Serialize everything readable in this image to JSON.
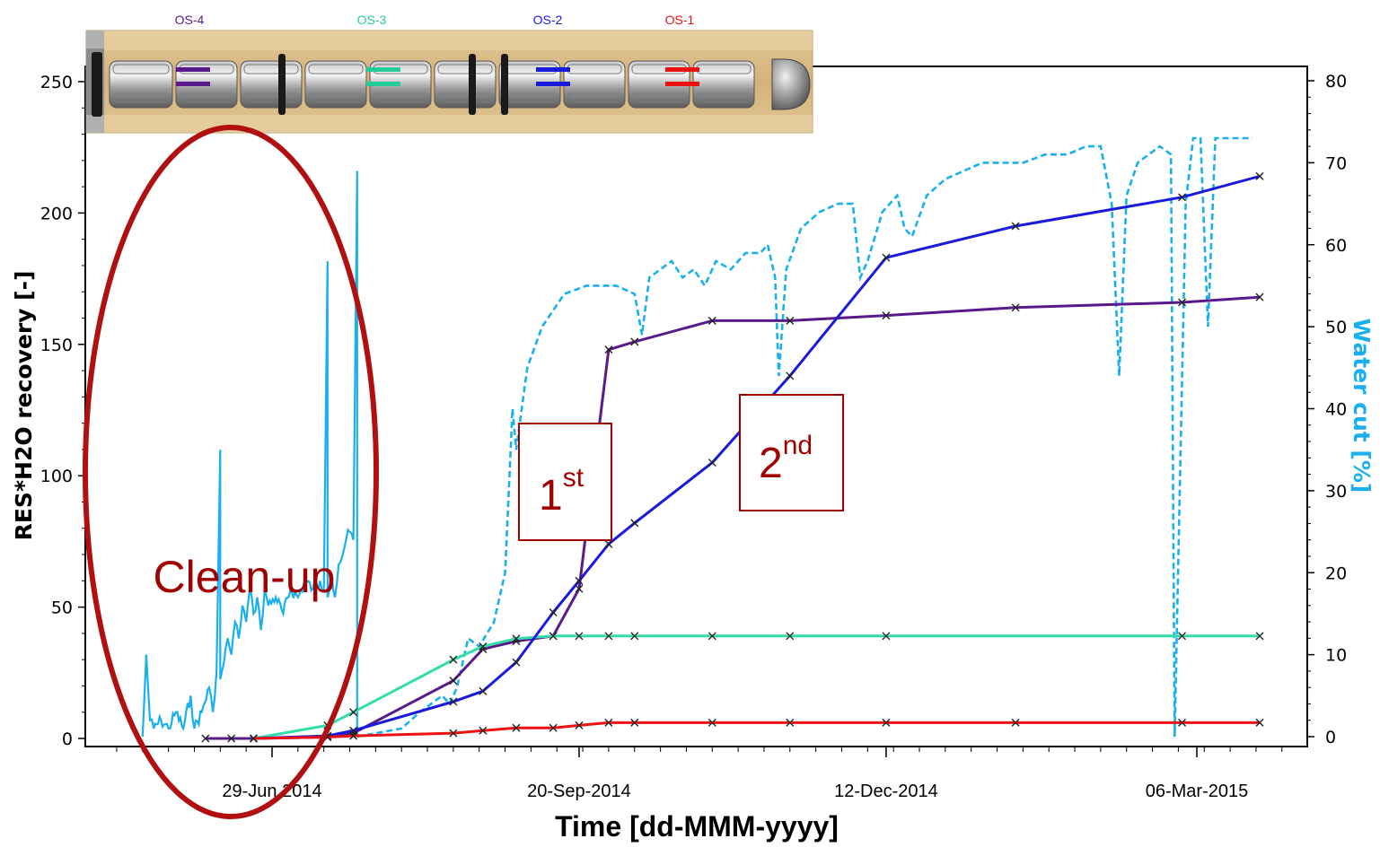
{
  "chart_data": {
    "type": "line",
    "title": "",
    "xlabel": "Time [dd-MMM-yyyy]",
    "ylabel": "RES*H2O recovery [-]",
    "y2label": "Water cut [%]",
    "xlim": [
      "2014-05-10",
      "2015-03-31"
    ],
    "ylim": [
      0,
      250
    ],
    "y2lim": [
      0,
      80
    ],
    "x_tick_labels": [
      {
        "date": "2014-06-29",
        "label": "29-Jun 2014"
      },
      {
        "date": "2014-09-20",
        "label": "20-Sep-2014"
      },
      {
        "date": "2014-12-12",
        "label": "12-Dec-2014"
      },
      {
        "date": "2015-03-06",
        "label": "06-Mar-2015"
      }
    ],
    "y_ticks": [
      0,
      50,
      100,
      150,
      200,
      250
    ],
    "y2_ticks": [
      0,
      10,
      20,
      30,
      40,
      50,
      60,
      70,
      80
    ],
    "colors": {
      "os1": "#ee1111",
      "os2": "#1a1add",
      "os3": "#33ddaa",
      "os4": "#5a1a8c",
      "water": "#1ab0ee",
      "annotation": "#a00000"
    },
    "series": [
      {
        "name": "OS-4",
        "color": "#5a1a8c",
        "points": [
          [
            "2014-06-11",
            0
          ],
          [
            "2014-06-18",
            0
          ],
          [
            "2014-06-24",
            0
          ],
          [
            "2014-07-14",
            0.5
          ],
          [
            "2014-07-21",
            2
          ],
          [
            "2014-08-17",
            22
          ],
          [
            "2014-08-25",
            34
          ],
          [
            "2014-09-03",
            37
          ],
          [
            "2014-09-13",
            39
          ],
          [
            "2014-09-20",
            57
          ],
          [
            "2014-09-28",
            148
          ],
          [
            "2014-10-05",
            151
          ],
          [
            "2014-10-26",
            159
          ],
          [
            "2014-11-16",
            159
          ],
          [
            "2014-12-12",
            161
          ],
          [
            "2015-01-16",
            164
          ],
          [
            "2015-03-02",
            166
          ],
          [
            "2015-03-23",
            168
          ]
        ]
      },
      {
        "name": "OS-3",
        "color": "#33ddaa",
        "points": [
          [
            "2014-06-24",
            0
          ],
          [
            "2014-07-14",
            5
          ],
          [
            "2014-07-21",
            10
          ],
          [
            "2014-08-17",
            30
          ],
          [
            "2014-08-25",
            35
          ],
          [
            "2014-09-03",
            38
          ],
          [
            "2014-09-13",
            39
          ],
          [
            "2014-09-20",
            39
          ],
          [
            "2014-09-28",
            39
          ],
          [
            "2014-10-05",
            39
          ],
          [
            "2014-10-26",
            39
          ],
          [
            "2014-11-16",
            39
          ],
          [
            "2014-12-12",
            39
          ],
          [
            "2015-03-02",
            39
          ],
          [
            "2015-03-23",
            39
          ]
        ]
      },
      {
        "name": "OS-2",
        "color": "#1a1add",
        "points": [
          [
            "2014-06-24",
            0
          ],
          [
            "2014-07-14",
            1
          ],
          [
            "2014-07-21",
            3
          ],
          [
            "2014-08-17",
            14
          ],
          [
            "2014-08-25",
            18
          ],
          [
            "2014-09-03",
            29
          ],
          [
            "2014-09-13",
            48
          ],
          [
            "2014-09-20",
            60
          ],
          [
            "2014-09-28",
            74
          ],
          [
            "2014-10-05",
            82
          ],
          [
            "2014-10-26",
            105
          ],
          [
            "2014-11-16",
            138
          ],
          [
            "2014-12-12",
            183
          ],
          [
            "2015-01-16",
            195
          ],
          [
            "2015-03-02",
            206
          ],
          [
            "2015-03-23",
            214
          ]
        ]
      },
      {
        "name": "OS-1",
        "color": "#ee1111",
        "points": [
          [
            "2014-06-24",
            0
          ],
          [
            "2014-07-14",
            0.5
          ],
          [
            "2014-07-21",
            1
          ],
          [
            "2014-08-17",
            2
          ],
          [
            "2014-08-25",
            3
          ],
          [
            "2014-09-03",
            4
          ],
          [
            "2014-09-13",
            4
          ],
          [
            "2014-09-20",
            5
          ],
          [
            "2014-09-28",
            6
          ],
          [
            "2014-10-05",
            6
          ],
          [
            "2014-10-26",
            6
          ],
          [
            "2014-11-16",
            6
          ],
          [
            "2014-12-12",
            6
          ],
          [
            "2015-01-16",
            6
          ],
          [
            "2015-03-02",
            6
          ],
          [
            "2015-03-23",
            6
          ]
        ]
      }
    ],
    "water_cut": {
      "color": "#1ab0ee",
      "cleanup_solid": [
        [
          "2014-05-25",
          0
        ],
        [
          "2014-05-26",
          10
        ],
        [
          "2014-05-27",
          2
        ],
        [
          "2014-05-28",
          1
        ],
        [
          "2014-05-30",
          2
        ],
        [
          "2014-06-01",
          1
        ],
        [
          "2014-06-03",
          3
        ],
        [
          "2014-06-05",
          1
        ],
        [
          "2014-06-07",
          5
        ],
        [
          "2014-06-08",
          1
        ],
        [
          "2014-06-10",
          3
        ],
        [
          "2014-06-12",
          6
        ],
        [
          "2014-06-13",
          3
        ],
        [
          "2014-06-14",
          8
        ],
        [
          "2014-06-15",
          35
        ],
        [
          "2014-06-15",
          7
        ],
        [
          "2014-06-16",
          9
        ],
        [
          "2014-06-17",
          12
        ],
        [
          "2014-06-18",
          10
        ],
        [
          "2014-06-19",
          14
        ],
        [
          "2014-06-20",
          12
        ],
        [
          "2014-06-21",
          16
        ],
        [
          "2014-06-22",
          14
        ],
        [
          "2014-06-23",
          18
        ],
        [
          "2014-06-24",
          15
        ],
        [
          "2014-06-25",
          17
        ],
        [
          "2014-06-26",
          13
        ],
        [
          "2014-06-27",
          18
        ],
        [
          "2014-06-28",
          16
        ],
        [
          "2014-06-30",
          17
        ],
        [
          "2014-07-02",
          15
        ],
        [
          "2014-07-04",
          18
        ],
        [
          "2014-07-06",
          17
        ],
        [
          "2014-07-08",
          19
        ],
        [
          "2014-07-10",
          18
        ],
        [
          "2014-07-12",
          19
        ],
        [
          "2014-07-13",
          18
        ],
        [
          "2014-07-14",
          58
        ],
        [
          "2014-07-14",
          17
        ],
        [
          "2014-07-15",
          20
        ],
        [
          "2014-07-16",
          17
        ],
        [
          "2014-07-17",
          21
        ],
        [
          "2014-07-18",
          22
        ],
        [
          "2014-07-19",
          24
        ],
        [
          "2014-07-20",
          25
        ],
        [
          "2014-07-21",
          24
        ],
        [
          "2014-07-22",
          69
        ],
        [
          "2014-07-22",
          0
        ]
      ],
      "dashed": [
        [
          "2014-07-22",
          0
        ],
        [
          "2014-08-03",
          1
        ],
        [
          "2014-08-08",
          3
        ],
        [
          "2014-08-14",
          5
        ],
        [
          "2014-08-16",
          4
        ],
        [
          "2014-08-18",
          6
        ],
        [
          "2014-08-21",
          12
        ],
        [
          "2014-08-24",
          11
        ],
        [
          "2014-08-28",
          14
        ],
        [
          "2014-08-31",
          20
        ],
        [
          "2014-09-02",
          40
        ],
        [
          "2014-09-03",
          35
        ],
        [
          "2014-09-06",
          45
        ],
        [
          "2014-09-10",
          50
        ],
        [
          "2014-09-16",
          54
        ],
        [
          "2014-09-22",
          55
        ],
        [
          "2014-09-30",
          55
        ],
        [
          "2014-10-05",
          54
        ],
        [
          "2014-10-07",
          49
        ],
        [
          "2014-10-09",
          56
        ],
        [
          "2014-10-12",
          57
        ],
        [
          "2014-10-15",
          58
        ],
        [
          "2014-10-18",
          56
        ],
        [
          "2014-10-21",
          57
        ],
        [
          "2014-10-24",
          55
        ],
        [
          "2014-10-27",
          58
        ],
        [
          "2014-10-31",
          57
        ],
        [
          "2014-11-04",
          59
        ],
        [
          "2014-11-08",
          59
        ],
        [
          "2014-11-10",
          60
        ],
        [
          "2014-11-12",
          56
        ],
        [
          "2014-11-13",
          44
        ],
        [
          "2014-11-15",
          57
        ],
        [
          "2014-11-19",
          62
        ],
        [
          "2014-11-24",
          64
        ],
        [
          "2014-11-29",
          65
        ],
        [
          "2014-12-03",
          65
        ],
        [
          "2014-12-05",
          56
        ],
        [
          "2014-12-07",
          58
        ],
        [
          "2014-12-11",
          64
        ],
        [
          "2014-12-15",
          66
        ],
        [
          "2014-12-17",
          62
        ],
        [
          "2014-12-19",
          61
        ],
        [
          "2014-12-23",
          66
        ],
        [
          "2014-12-28",
          68
        ],
        [
          "2015-01-02",
          69
        ],
        [
          "2015-01-07",
          70
        ],
        [
          "2015-01-12",
          70
        ],
        [
          "2015-01-18",
          70
        ],
        [
          "2015-01-24",
          71
        ],
        [
          "2015-01-30",
          71
        ],
        [
          "2015-02-04",
          72
        ],
        [
          "2015-02-08",
          72
        ],
        [
          "2015-02-11",
          65
        ],
        [
          "2015-02-13",
          44
        ],
        [
          "2015-02-15",
          66
        ],
        [
          "2015-02-18",
          70
        ],
        [
          "2015-02-21",
          71
        ],
        [
          "2015-02-24",
          72
        ],
        [
          "2015-02-27",
          71
        ],
        [
          "2015-02-28",
          0
        ],
        [
          "2015-03-03",
          65
        ],
        [
          "2015-03-05",
          73
        ],
        [
          "2015-03-07",
          73
        ],
        [
          "2015-03-09",
          50
        ],
        [
          "2015-03-11",
          73
        ],
        [
          "2015-03-14",
          73
        ],
        [
          "2015-03-21",
          73
        ]
      ]
    },
    "annotations": [
      {
        "text": "Clean-up",
        "x": "2014-06-23",
        "y": 60
      },
      {
        "text": "1",
        "sup": "st",
        "x": "2014-09-13",
        "y": 107
      },
      {
        "text": "2",
        "sup": "nd",
        "x": "2014-11-21",
        "y": 110
      }
    ]
  },
  "well_diagram": {
    "labels": [
      {
        "text": "OS-4",
        "color": "#5a1a8c"
      },
      {
        "text": "OS-3",
        "color": "#22cc99"
      },
      {
        "text": "OS-2",
        "color": "#1a1add"
      },
      {
        "text": "OS-1",
        "color": "#ee1111"
      }
    ]
  }
}
